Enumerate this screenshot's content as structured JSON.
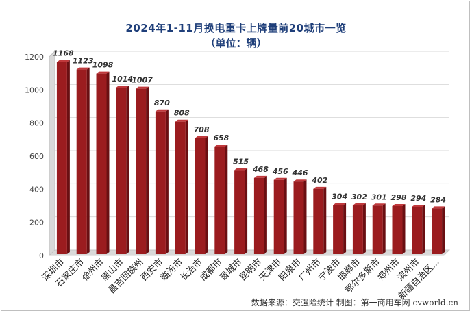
{
  "chart_data": {
    "type": "bar",
    "title": "2024年1-11月换电重卡上牌量前20城市一览",
    "subtitle": "（单位：辆）",
    "categories": [
      "深圳市",
      "石家庄市",
      "徐州市",
      "唐山市",
      "昌吉回族州",
      "西安市",
      "临汾市",
      "长治市",
      "成都市",
      "晋城市",
      "昆明市",
      "天津市",
      "阳泉市",
      "广州市",
      "宁波市",
      "邯郸市",
      "鄂尔多斯市",
      "郑州市",
      "滨州市",
      "新疆自治区..."
    ],
    "values": [
      1168,
      1123,
      1098,
      1014,
      1007,
      870,
      808,
      708,
      658,
      515,
      468,
      456,
      446,
      402,
      304,
      302,
      301,
      298,
      294,
      284
    ],
    "yticks": [
      0,
      200,
      400,
      600,
      800,
      1000,
      1200
    ],
    "ylim": [
      0,
      1200
    ],
    "xlabel": "",
    "ylabel": "",
    "grid": true,
    "bar_color": "#9b1c1f",
    "bar_dark": "#6a0f12",
    "bar_light": "#c0393c"
  },
  "source_text": "数据来源：交强险统计   制图：第一商用车网 cvworld.cn"
}
